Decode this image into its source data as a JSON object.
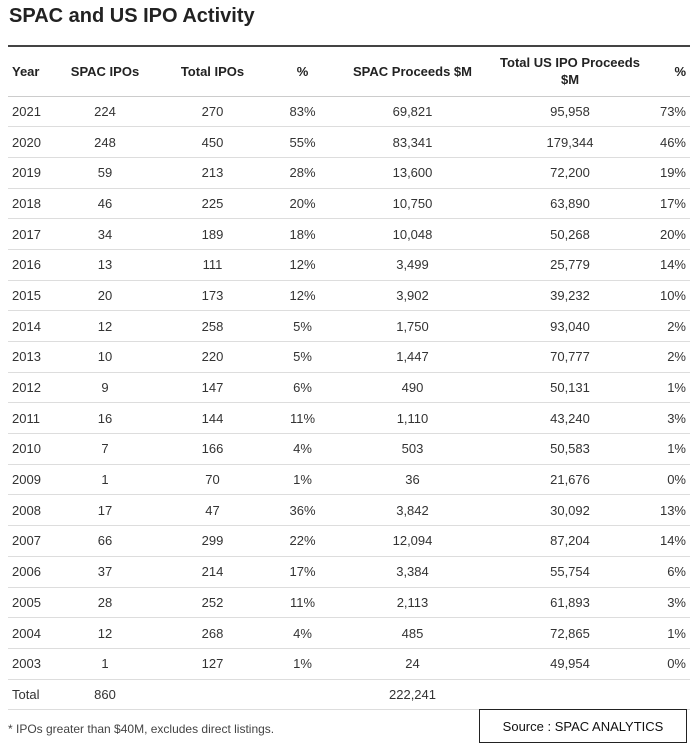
{
  "header": {
    "title": "SPAC and US IPO Activity"
  },
  "table": {
    "columns": [
      "Year",
      "SPAC IPOs",
      "Total IPOs",
      "%",
      "SPAC Proceeds $M",
      "Total US IPO Proceeds $M",
      "%"
    ],
    "rows": [
      [
        "2021",
        "224",
        "270",
        "83%",
        "69,821",
        "95,958",
        "73%"
      ],
      [
        "2020",
        "248",
        "450",
        "55%",
        "83,341",
        "179,344",
        "46%"
      ],
      [
        "2019",
        "59",
        "213",
        "28%",
        "13,600",
        "72,200",
        "19%"
      ],
      [
        "2018",
        "46",
        "225",
        "20%",
        "10,750",
        "63,890",
        "17%"
      ],
      [
        "2017",
        "34",
        "189",
        "18%",
        "10,048",
        "50,268",
        "20%"
      ],
      [
        "2016",
        "13",
        "111",
        "12%",
        "3,499",
        "25,779",
        "14%"
      ],
      [
        "2015",
        "20",
        "173",
        "12%",
        "3,902",
        "39,232",
        "10%"
      ],
      [
        "2014",
        "12",
        "258",
        "5%",
        "1,750",
        "93,040",
        "2%"
      ],
      [
        "2013",
        "10",
        "220",
        "5%",
        "1,447",
        "70,777",
        "2%"
      ],
      [
        "2012",
        "9",
        "147",
        "6%",
        "490",
        "50,131",
        "1%"
      ],
      [
        "2011",
        "16",
        "144",
        "11%",
        "1,110",
        "43,240",
        "3%"
      ],
      [
        "2010",
        "7",
        "166",
        "4%",
        "503",
        "50,583",
        "1%"
      ],
      [
        "2009",
        "1",
        "70",
        "1%",
        "36",
        "21,676",
        "0%"
      ],
      [
        "2008",
        "17",
        "47",
        "36%",
        "3,842",
        "30,092",
        "13%"
      ],
      [
        "2007",
        "66",
        "299",
        "22%",
        "12,094",
        "87,204",
        "14%"
      ],
      [
        "2006",
        "37",
        "214",
        "17%",
        "3,384",
        "55,754",
        "6%"
      ],
      [
        "2005",
        "28",
        "252",
        "11%",
        "2,113",
        "61,893",
        "3%"
      ],
      [
        "2004",
        "12",
        "268",
        "4%",
        "485",
        "72,865",
        "1%"
      ],
      [
        "2003",
        "1",
        "127",
        "1%",
        "24",
        "49,954",
        "0%"
      ]
    ],
    "total": {
      "label": "Total",
      "spac_ipos": "860",
      "spac_proceeds": "222,241"
    }
  },
  "footnote": "* IPOs greater than $40M, excludes direct listings.",
  "source": "Source : SPAC ANALYTICS"
}
